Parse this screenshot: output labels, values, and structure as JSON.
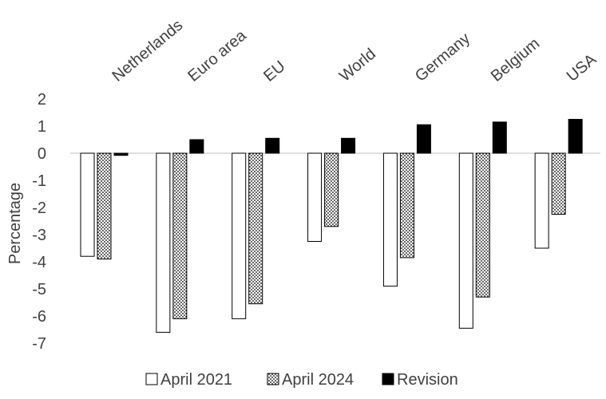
{
  "chart_data": {
    "type": "bar",
    "categories": [
      "Netherlands",
      "Euro area",
      "EU",
      "World",
      "Germany",
      "Belgium",
      "USA"
    ],
    "series": [
      {
        "name": "April 2021",
        "values": [
          -3.8,
          -6.6,
          -6.1,
          -3.25,
          -4.9,
          -6.45,
          -3.5
        ],
        "fill": "#ffffff",
        "pattern": "none"
      },
      {
        "name": "April 2024",
        "values": [
          -3.9,
          -6.1,
          -5.55,
          -2.7,
          -3.85,
          -5.3,
          -2.25
        ],
        "fill": "#ffffff",
        "pattern": "dots"
      },
      {
        "name": "Revision",
        "values": [
          -0.08,
          0.5,
          0.55,
          0.55,
          1.05,
          1.15,
          1.25
        ],
        "fill": "#000000",
        "pattern": "solid"
      }
    ],
    "ylabel": "Percentage",
    "xlabel": "",
    "ylim": [
      -7,
      2
    ],
    "yticks": [
      "2",
      "1",
      "0",
      "-1",
      "-2",
      "-3",
      "-4",
      "-5",
      "-6",
      "-7"
    ],
    "grid": false,
    "legend": "bottom",
    "category_labels_position": "top-rotated"
  }
}
